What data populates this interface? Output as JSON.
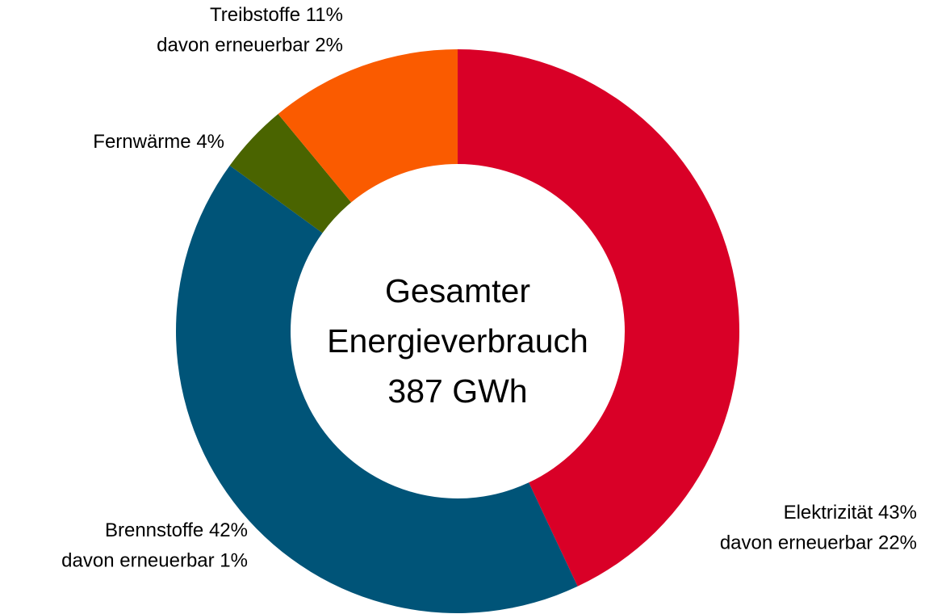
{
  "chart_data": {
    "type": "donut",
    "center_text": [
      "Gesamter",
      "Energieverbrauch",
      "387 GWh"
    ],
    "categories": [
      "Elektrizität",
      "Brennstoffe",
      "Fernwärme",
      "Treibstoffe"
    ],
    "values": [
      43,
      42,
      4,
      11
    ],
    "value_labels": [
      "43%",
      "42%",
      "4%",
      "11%"
    ],
    "sublabels": [
      "davon erneuerbar 22%",
      "davon erneuerbar 1%",
      null,
      "davon erneuerbar 2%"
    ],
    "colors": [
      "#d90027",
      "#005478",
      "#4a6400",
      "#fa5b00"
    ]
  }
}
